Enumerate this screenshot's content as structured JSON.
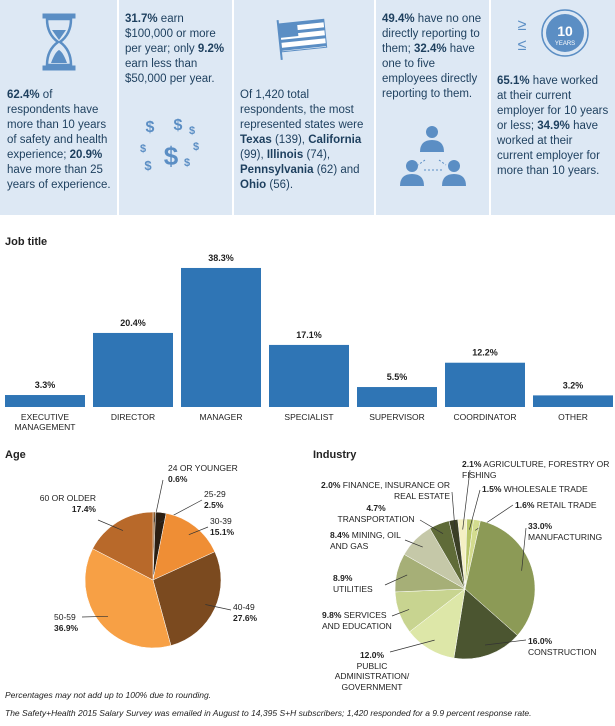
{
  "highlights": [
    {
      "segments": [
        {
          "text": "62.4%",
          "bold": true
        },
        {
          "text": " of respondents have more than 10 years of safety and health experience; "
        },
        {
          "text": "20.9%",
          "bold": true
        },
        {
          "text": " have more than 25 years of experience."
        }
      ]
    },
    {
      "segments": [
        {
          "text": "31.7%",
          "bold": true
        },
        {
          "text": " earn $100,000 or more per year; only "
        },
        {
          "text": "9.2%",
          "bold": true
        },
        {
          "text": " earn less than $50,000 per year."
        }
      ],
      "icon": "$"
    },
    {
      "segments": [
        {
          "text": "Of 1,420 total respondents, the most represented states were "
        },
        {
          "text": "Texas",
          "bold": true
        },
        {
          "text": " (139), "
        },
        {
          "text": "California",
          "bold": true
        },
        {
          "text": " (99), "
        },
        {
          "text": "Illinois",
          "bold": true
        },
        {
          "text": " (74), "
        },
        {
          "text": "Pennsylvania",
          "bold": true
        },
        {
          "text": " (62) and "
        },
        {
          "text": "Ohio",
          "bold": true
        },
        {
          "text": " (56)."
        }
      ]
    },
    {
      "segments": [
        {
          "text": "49.4%",
          "bold": true
        },
        {
          "text": " have no one directly reporting to them; "
        },
        {
          "text": "32.4%",
          "bold": true
        },
        {
          "text": " have one to five employees directly reporting to them."
        }
      ]
    },
    {
      "segments": [
        {
          "text": "65.1%",
          "bold": true
        },
        {
          "text": " have worked at their current employer for 10 years or less; "
        },
        {
          "text": "34.9%",
          "bold": true
        },
        {
          "text": " have worked at their current employer for more than 10 years."
        }
      ],
      "badge_number": "10",
      "badge_text": "YEARS",
      "symbols": [
        "≥",
        "≤"
      ]
    }
  ],
  "chart_data": [
    {
      "type": "bar",
      "title": "Job title",
      "categories": [
        "EXECUTIVE MANAGEMENT",
        "DIRECTOR",
        "MANAGER",
        "SPECIALIST",
        "SUPERVISOR",
        "COORDINATOR",
        "OTHER"
      ],
      "values": [
        3.3,
        20.4,
        38.3,
        17.1,
        5.5,
        12.2,
        3.2
      ],
      "value_labels": [
        "3.3%",
        "20.4%",
        "38.3%",
        "17.1%",
        "5.5%",
        "12.2%",
        "3.2%"
      ],
      "color": "#2f75b5"
    },
    {
      "type": "pie",
      "title": "Age",
      "categories": [
        "24 OR YOUNGER",
        "25-29",
        "30-39",
        "40-49",
        "50-59",
        "60 OR OLDER"
      ],
      "values": [
        0.6,
        2.5,
        15.1,
        27.6,
        36.9,
        17.4
      ],
      "value_labels": [
        "0.6%",
        "2.5%",
        "15.1%",
        "27.6%",
        "36.9%",
        "17.4%"
      ],
      "colors": [
        "#8a5a2a",
        "#2b1e12",
        "#ef8e35",
        "#7b4a1f",
        "#f7a045",
        "#b8692a"
      ]
    },
    {
      "type": "pie",
      "title": "Industry",
      "categories": [
        "AGRICULTURE, FORESTRY OR FISHING",
        "WHOLESALE TRADE",
        "RETAIL TRADE",
        "MANUFACTURING",
        "CONSTRUCTION",
        "PUBLIC ADMINISTRATION/ GOVERNMENT",
        "SERVICES AND EDUCATION",
        "UTILITIES",
        "MINING, OIL AND GAS",
        "TRANSPORTATION",
        "FINANCE, INSURANCE OR REAL ESTATE"
      ],
      "values": [
        2.1,
        1.5,
        1.6,
        33.0,
        16.0,
        12.0,
        9.8,
        8.9,
        8.4,
        4.7,
        2.0
      ],
      "value_labels": [
        "2.1%",
        "1.5%",
        "1.6%",
        "33.0%",
        "16.0%",
        "12.0%",
        "9.8%",
        "8.9%",
        "8.4%",
        "4.7%",
        "2.0%"
      ],
      "colors": [
        "#f4f0c4",
        "#b9c66a",
        "#d3dc8e",
        "#8c9a56",
        "#4b5530",
        "#dde7a8",
        "#c8d490",
        "#a6af77",
        "#c5c8a8",
        "#5f6b38",
        "#3b3f26"
      ]
    }
  ],
  "footnotes": [
    "Percentages may not add up to 100% due to rounding.",
    "The Safety+Health 2015 Salary Survey was emailed in August to 14,395 S+H subscribers; 1,420 responded for a 9.9 percent response rate."
  ]
}
